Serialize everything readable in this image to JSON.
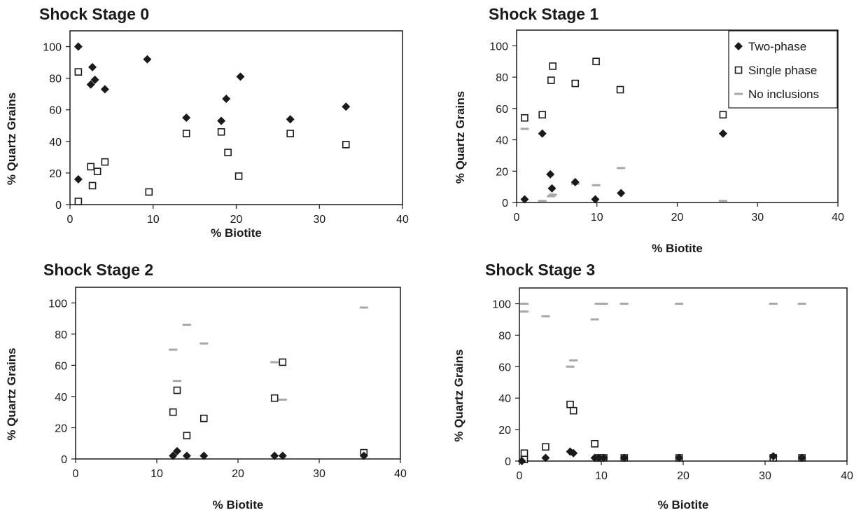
{
  "colors": {
    "two_phase": "#1a1a1a",
    "single_phase": "#1a1a1a",
    "no_inclusions": "#a8a8a8",
    "axis": "#1a1a1a"
  },
  "legend": {
    "placement": "top-right",
    "panel": 1,
    "entries": [
      {
        "label": "Two-phase",
        "marker": "diamond-filled"
      },
      {
        "label": "Single phase",
        "marker": "square-open"
      },
      {
        "label": "No inclusions",
        "marker": "dash-gray"
      }
    ]
  },
  "chart_data": [
    {
      "type": "scatter",
      "title": "Shock Stage 0",
      "xlabel": "% Biotite",
      "ylabel": "% Quartz Grains",
      "xlim": [
        0,
        40
      ],
      "ylim": [
        0,
        110
      ],
      "xticks": [
        0,
        10,
        20,
        30,
        40
      ],
      "yticks": [
        0,
        20,
        40,
        60,
        80,
        100
      ],
      "grid": false,
      "series": [
        {
          "name": "Two-phase",
          "marker": "diamond-filled",
          "points": [
            [
              1,
              100
            ],
            [
              1,
              16
            ],
            [
              2.7,
              87
            ],
            [
              2.5,
              76
            ],
            [
              3,
              79
            ],
            [
              4.2,
              73
            ],
            [
              9.3,
              92
            ],
            [
              14,
              55
            ],
            [
              18.2,
              53
            ],
            [
              18.8,
              67
            ],
            [
              20.5,
              81
            ],
            [
              26.5,
              54
            ],
            [
              33.2,
              62
            ]
          ]
        },
        {
          "name": "Single phase",
          "marker": "square-open",
          "points": [
            [
              1,
              84
            ],
            [
              1,
              2
            ],
            [
              2.5,
              24
            ],
            [
              2.7,
              12
            ],
            [
              3.3,
              21
            ],
            [
              4.2,
              27
            ],
            [
              9.5,
              8
            ],
            [
              14,
              45
            ],
            [
              18.2,
              46
            ],
            [
              19,
              33
            ],
            [
              20.3,
              18
            ],
            [
              26.5,
              45
            ],
            [
              33.2,
              38
            ]
          ]
        },
        {
          "name": "No inclusions",
          "marker": "dash-gray",
          "points": []
        }
      ]
    },
    {
      "type": "scatter",
      "title": "Shock Stage 1",
      "xlabel": "% Biotite",
      "ylabel": "% Quartz Grains",
      "xlim": [
        0,
        40
      ],
      "ylim": [
        0,
        110
      ],
      "xticks": [
        0,
        10,
        20,
        30,
        40
      ],
      "yticks": [
        0,
        20,
        40,
        60,
        80,
        100
      ],
      "grid": false,
      "series": [
        {
          "name": "Two-phase",
          "marker": "diamond-filled",
          "points": [
            [
              1,
              2
            ],
            [
              3.2,
              44
            ],
            [
              4.2,
              18
            ],
            [
              4.4,
              9
            ],
            [
              7.3,
              13
            ],
            [
              9.8,
              2
            ],
            [
              13,
              6
            ],
            [
              25.7,
              44
            ]
          ]
        },
        {
          "name": "Single phase",
          "marker": "square-open",
          "points": [
            [
              1,
              54
            ],
            [
              3.2,
              56
            ],
            [
              4.3,
              78
            ],
            [
              4.5,
              87
            ],
            [
              7.3,
              76
            ],
            [
              9.9,
              90
            ],
            [
              12.9,
              72
            ],
            [
              25.7,
              56
            ]
          ]
        },
        {
          "name": "No inclusions",
          "marker": "dash-gray",
          "points": [
            [
              1,
              47
            ],
            [
              3.2,
              1
            ],
            [
              4.3,
              4
            ],
            [
              4.5,
              5
            ],
            [
              7.3,
              12
            ],
            [
              9.9,
              11
            ],
            [
              13,
              22
            ],
            [
              25.7,
              1
            ]
          ]
        }
      ]
    },
    {
      "type": "scatter",
      "title": "Shock Stage 2",
      "xlabel": "% Biotite",
      "ylabel": "% Quartz Grains",
      "xlim": [
        0,
        40
      ],
      "ylim": [
        0,
        110
      ],
      "xticks": [
        0,
        10,
        20,
        30,
        40
      ],
      "yticks": [
        0,
        20,
        40,
        60,
        80,
        100
      ],
      "grid": false,
      "series": [
        {
          "name": "Two-phase",
          "marker": "diamond-filled",
          "points": [
            [
              12,
              2
            ],
            [
              12.5,
              5
            ],
            [
              13.7,
              2
            ],
            [
              15.8,
              2
            ],
            [
              24.5,
              2
            ],
            [
              25.5,
              2
            ],
            [
              35.5,
              2
            ]
          ]
        },
        {
          "name": "Single phase",
          "marker": "square-open",
          "points": [
            [
              12,
              30
            ],
            [
              12.5,
              44
            ],
            [
              13.7,
              15
            ],
            [
              15.8,
              26
            ],
            [
              24.5,
              39
            ],
            [
              25.5,
              62
            ],
            [
              35.5,
              4
            ]
          ]
        },
        {
          "name": "No inclusions",
          "marker": "dash-gray",
          "points": [
            [
              12,
              70
            ],
            [
              12.5,
              50
            ],
            [
              13.7,
              86
            ],
            [
              15.8,
              74
            ],
            [
              24.5,
              62
            ],
            [
              25.5,
              38
            ],
            [
              35.5,
              97
            ]
          ]
        }
      ]
    },
    {
      "type": "scatter",
      "title": "Shock Stage 3",
      "xlabel": "% Biotite",
      "ylabel": "% Quartz Grains",
      "xlim": [
        0,
        40
      ],
      "ylim": [
        0,
        110
      ],
      "xticks": [
        0,
        10,
        20,
        30,
        40
      ],
      "yticks": [
        0,
        20,
        40,
        60,
        80,
        100
      ],
      "grid": false,
      "series": [
        {
          "name": "Two-phase",
          "marker": "diamond-filled",
          "points": [
            [
              0.3,
              0
            ],
            [
              3.2,
              2
            ],
            [
              6.2,
              6
            ],
            [
              6.6,
              5
            ],
            [
              9.2,
              2
            ],
            [
              9.7,
              2
            ],
            [
              10.3,
              2
            ],
            [
              12.8,
              2
            ],
            [
              19.5,
              2
            ],
            [
              31,
              3
            ],
            [
              34.5,
              2
            ]
          ]
        },
        {
          "name": "Single phase",
          "marker": "square-open",
          "points": [
            [
              0.6,
              5
            ],
            [
              0.6,
              1
            ],
            [
              3.2,
              9
            ],
            [
              6.2,
              36
            ],
            [
              6.6,
              32
            ],
            [
              9.2,
              11
            ],
            [
              9.7,
              2
            ],
            [
              10.3,
              2
            ],
            [
              12.8,
              2
            ],
            [
              19.5,
              2
            ],
            [
              31,
              2
            ],
            [
              34.5,
              2
            ]
          ]
        },
        {
          "name": "No inclusions",
          "marker": "dash-gray",
          "points": [
            [
              0.6,
              100
            ],
            [
              0.6,
              95
            ],
            [
              3.2,
              92
            ],
            [
              6.2,
              60
            ],
            [
              6.6,
              64
            ],
            [
              9.2,
              90
            ],
            [
              9.7,
              100
            ],
            [
              10.3,
              100
            ],
            [
              12.8,
              100
            ],
            [
              19.5,
              100
            ],
            [
              31,
              100
            ],
            [
              34.5,
              100
            ]
          ]
        }
      ]
    }
  ]
}
